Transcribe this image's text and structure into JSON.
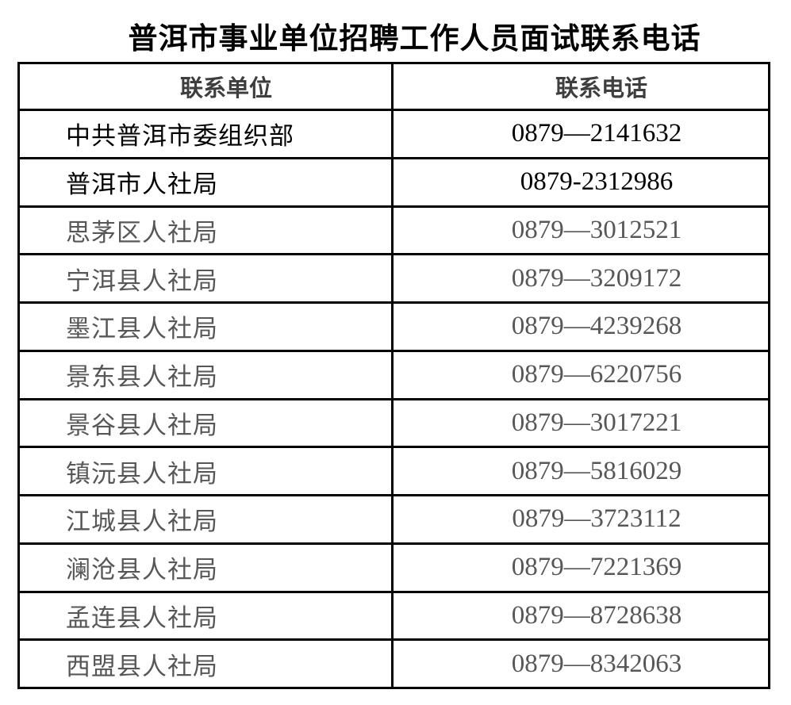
{
  "title": "普洱市事业单位招聘工作人员面试联系电话",
  "table": {
    "headers": {
      "unit": "联系单位",
      "phone": "联系电话"
    },
    "rows": [
      {
        "unit": "中共普洱市委组织部",
        "phone": "0879—2141632",
        "tone": "black"
      },
      {
        "unit": "普洱市人社局",
        "phone": "0879-2312986",
        "tone": "black"
      },
      {
        "unit": "思茅区人社局",
        "phone": "0879—3012521",
        "tone": "gray"
      },
      {
        "unit": "宁洱县人社局",
        "phone": "0879—3209172",
        "tone": "gray"
      },
      {
        "unit": "墨江县人社局",
        "phone": "0879—4239268",
        "tone": "gray"
      },
      {
        "unit": "景东县人社局",
        "phone": "0879—6220756",
        "tone": "gray"
      },
      {
        "unit": "景谷县人社局",
        "phone": "0879—3017221",
        "tone": "gray"
      },
      {
        "unit": "镇沅县人社局",
        "phone": "0879—5816029",
        "tone": "gray"
      },
      {
        "unit": "江城县人社局",
        "phone": "0879—3723112",
        "tone": "gray"
      },
      {
        "unit": "澜沧县人社局",
        "phone": "0879—7221369",
        "tone": "gray"
      },
      {
        "unit": "孟连县人社局",
        "phone": "0879—8728638",
        "tone": "gray"
      },
      {
        "unit": "西盟县人社局",
        "phone": "0879—8342063",
        "tone": "gray"
      }
    ]
  },
  "colors": {
    "black_text": "#000000",
    "gray_text": "#575757",
    "header_text": "#3e3e3e",
    "border": "#000000",
    "page_background": "#ffffff"
  }
}
